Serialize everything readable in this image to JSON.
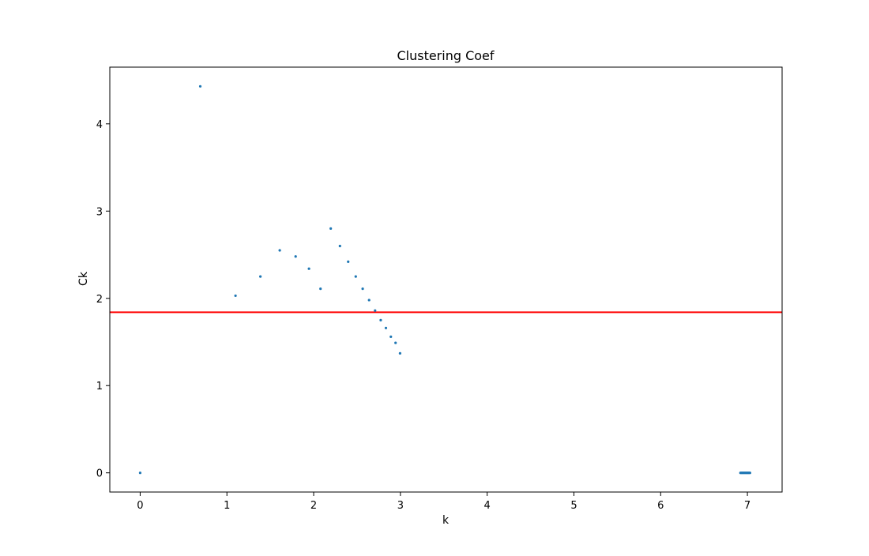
{
  "chart_data": {
    "type": "scatter",
    "title": "Clustering Coef",
    "xlabel": "k",
    "ylabel": "Ck",
    "xlim": [
      -0.35,
      7.4
    ],
    "ylim": [
      -0.22,
      4.65
    ],
    "xticks": [
      0,
      1,
      2,
      3,
      4,
      5,
      6,
      7
    ],
    "yticks": [
      0,
      1,
      2,
      3,
      4
    ],
    "grid": false,
    "legend": "none",
    "series": [
      {
        "color": "#1f77b4",
        "marker": "dot",
        "points": [
          {
            "x": 0.0,
            "y": 0.0
          },
          {
            "x": 0.693,
            "y": 4.43
          },
          {
            "x": 1.099,
            "y": 2.03
          },
          {
            "x": 1.386,
            "y": 2.25
          },
          {
            "x": 1.609,
            "y": 2.55
          },
          {
            "x": 1.792,
            "y": 2.48
          },
          {
            "x": 1.946,
            "y": 2.34
          },
          {
            "x": 2.079,
            "y": 2.11
          },
          {
            "x": 2.197,
            "y": 2.8
          },
          {
            "x": 2.303,
            "y": 2.6
          },
          {
            "x": 2.398,
            "y": 2.42
          },
          {
            "x": 2.485,
            "y": 2.25
          },
          {
            "x": 2.565,
            "y": 2.11
          },
          {
            "x": 2.639,
            "y": 1.98
          },
          {
            "x": 2.708,
            "y": 1.86
          },
          {
            "x": 2.773,
            "y": 1.75
          },
          {
            "x": 2.833,
            "y": 1.66
          },
          {
            "x": 2.89,
            "y": 1.56
          },
          {
            "x": 2.944,
            "y": 1.49
          },
          {
            "x": 2.996,
            "y": 1.37
          },
          {
            "x": 6.92,
            "y": 0.0
          },
          {
            "x": 6.93,
            "y": 0.0
          },
          {
            "x": 6.94,
            "y": 0.0
          },
          {
            "x": 6.95,
            "y": 0.0
          },
          {
            "x": 6.96,
            "y": 0.0
          },
          {
            "x": 6.97,
            "y": 0.0
          },
          {
            "x": 6.98,
            "y": 0.0
          },
          {
            "x": 6.99,
            "y": 0.0
          },
          {
            "x": 7.0,
            "y": 0.0
          },
          {
            "x": 7.01,
            "y": 0.0
          },
          {
            "x": 7.02,
            "y": 0.0
          },
          {
            "x": 7.03,
            "y": 0.0
          }
        ]
      }
    ],
    "hlines": [
      {
        "y": 1.84,
        "color": "#ff0000"
      }
    ]
  }
}
